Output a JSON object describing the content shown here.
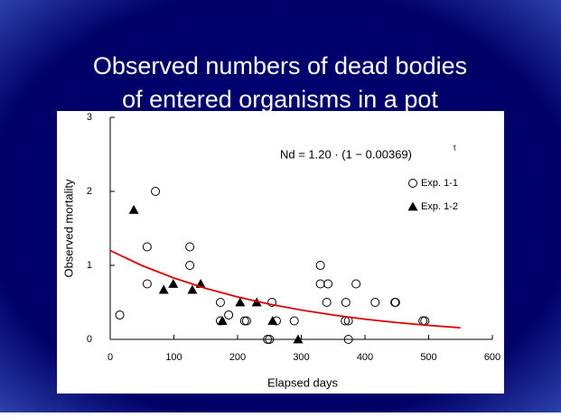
{
  "chart_data": {
    "type": "scatter",
    "title": [
      "Observed numbers of dead bodies",
      "of entered organisms in a pot"
    ],
    "x_label": "Elapsed days",
    "y_label": "Observed mortality",
    "annotation": {
      "text": "Nd = 1.20 · (1 − 0.00369)",
      "superscript": "t"
    },
    "xlim": [
      0,
      600
    ],
    "xticks": [
      0,
      100,
      200,
      300,
      400,
      500,
      600
    ],
    "ylim": [
      0,
      3
    ],
    "yticks": [
      0,
      1,
      2,
      3
    ],
    "legend": "upper right",
    "series": [
      {
        "name": "Exp. 1-1",
        "marker": "circle",
        "color": "#000000",
        "x": [
          15,
          58,
          58,
          71,
          125,
          125,
          173,
          173,
          186,
          211,
          214,
          247,
          250,
          254,
          261,
          289,
          330,
          330,
          342,
          340,
          370,
          369,
          374,
          374,
          386,
          416,
          447,
          448,
          491,
          494
        ],
        "values": [
          0.33,
          1.25,
          0.75,
          2,
          1.25,
          1,
          0.5,
          0.25,
          0.33,
          0.25,
          0.25,
          0,
          0,
          0.5,
          0.25,
          0.25,
          1,
          0.75,
          0.75,
          0.5,
          0.5,
          0.25,
          0.25,
          0,
          0.75,
          0.5,
          0.5,
          0.5,
          0.25,
          0.25
        ]
      },
      {
        "name": "Exp. 1-2",
        "marker": "triangle",
        "color": "#000000",
        "x": [
          37,
          84,
          99,
          129,
          142,
          176,
          204,
          230,
          255,
          295
        ],
        "values": [
          1.75,
          0.67,
          0.75,
          0.67,
          0.75,
          0.25,
          0.5,
          0.5,
          0.25,
          0
        ]
      },
      {
        "marker": "line",
        "color": "#e00000",
        "x": [
          0,
          50,
          100,
          150,
          200,
          250,
          300,
          350,
          400,
          450,
          500,
          550
        ],
        "values": [
          1.2,
          0.997,
          0.829,
          0.689,
          0.573,
          0.476,
          0.396,
          0.329,
          0.273,
          0.227,
          0.189,
          0.157
        ]
      }
    ]
  }
}
